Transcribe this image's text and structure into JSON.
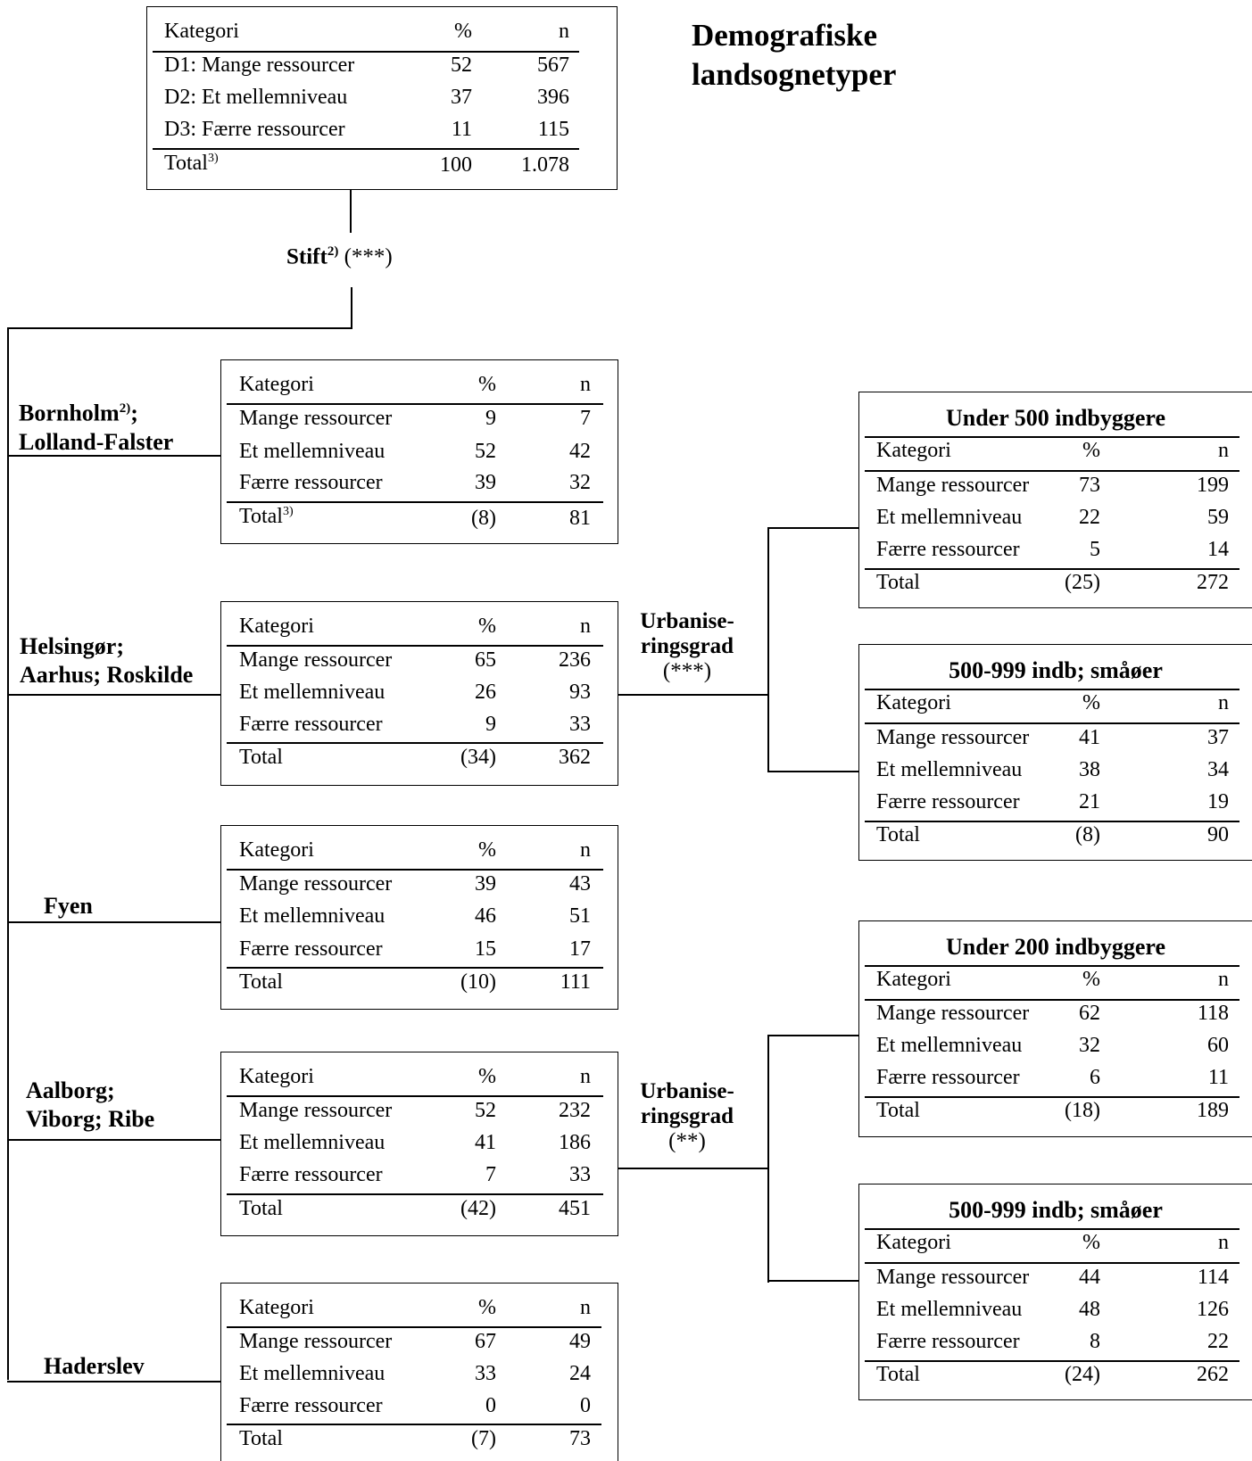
{
  "title": [
    "Demografiske",
    "landsognetyper"
  ],
  "root": {
    "header": [
      "Kategori",
      "%",
      "n"
    ],
    "rows": [
      [
        "D1: Mange ressourcer",
        "52",
        "567"
      ],
      [
        "D2: Et mellemniveau",
        "37",
        "396"
      ],
      [
        "D3: Færre ressourcer",
        "11",
        "115"
      ]
    ],
    "total": [
      "Total",
      "100",
      "1.078"
    ],
    "total_sup": "3)"
  },
  "split1": {
    "label": "Stift",
    "sup": "2)",
    "sig": "(***)"
  },
  "branches": [
    {
      "label": [
        "Bornholm",
        "Lolland-Falster"
      ],
      "label_sup": "2)",
      "label_suffix": ";",
      "table": {
        "header": [
          "Kategori",
          "%",
          "n"
        ],
        "rows": [
          [
            "Mange ressourcer",
            "9",
            "7"
          ],
          [
            "Et mellemniveau",
            "52",
            "42"
          ],
          [
            "Færre ressourcer",
            "39",
            "32"
          ]
        ],
        "total": [
          "Total",
          "(8)",
          "81"
        ],
        "total_sup": "3)"
      }
    },
    {
      "label": [
        "Helsingør;",
        "Aarhus; Roskilde"
      ],
      "table": {
        "header": [
          "Kategori",
          "%",
          "n"
        ],
        "rows": [
          [
            "Mange ressourcer",
            "65",
            "236"
          ],
          [
            "Et mellemniveau",
            "26",
            "93"
          ],
          [
            "Færre ressourcer",
            "9",
            "33"
          ]
        ],
        "total": [
          "Total",
          "(34)",
          "362"
        ]
      }
    },
    {
      "label": [
        "Fyen"
      ],
      "table": {
        "header": [
          "Kategori",
          "%",
          "n"
        ],
        "rows": [
          [
            "Mange ressourcer",
            "39",
            "43"
          ],
          [
            "Et mellemniveau",
            "46",
            "51"
          ],
          [
            "Færre ressourcer",
            "15",
            "17"
          ]
        ],
        "total": [
          "Total",
          "(10)",
          "111"
        ]
      }
    },
    {
      "label": [
        "Aalborg;",
        "Viborg; Ribe"
      ],
      "table": {
        "header": [
          "Kategori",
          "%",
          "n"
        ],
        "rows": [
          [
            "Mange ressourcer",
            "52",
            "232"
          ],
          [
            "Et mellemniveau",
            "41",
            "186"
          ],
          [
            "Færre ressourcer",
            "7",
            "33"
          ]
        ],
        "total": [
          "Total",
          "(42)",
          "451"
        ]
      }
    },
    {
      "label": [
        "Haderslev"
      ],
      "table": {
        "header": [
          "Kategori",
          "%",
          "n"
        ],
        "rows": [
          [
            "Mange ressourcer",
            "67",
            "49"
          ],
          [
            "Et mellemniveau",
            "33",
            "24"
          ],
          [
            "Færre ressourcer",
            "0",
            "0"
          ]
        ],
        "total": [
          "Total",
          "(7)",
          "73"
        ]
      }
    }
  ],
  "urbanisation": [
    {
      "label": [
        "Urbanise-",
        "ringsgrad"
      ],
      "sig": "(***)"
    },
    {
      "label": [
        "Urbanise-",
        "ringsgrad"
      ],
      "sig": "(**)"
    }
  ],
  "subtables": [
    {
      "title": "Under 500 indbyggere",
      "header": [
        "Kategori",
        "%",
        "n"
      ],
      "rows": [
        [
          "Mange ressourcer",
          "73",
          "199"
        ],
        [
          "Et mellemniveau",
          "22",
          "59"
        ],
        [
          "Færre ressourcer",
          "5",
          "14"
        ]
      ],
      "total": [
        "Total",
        "(25)",
        "272"
      ]
    },
    {
      "title": "500-999 indb; småøer",
      "header": [
        "Kategori",
        "%",
        "n"
      ],
      "rows": [
        [
          "Mange ressourcer",
          "41",
          "37"
        ],
        [
          "Et mellemniveau",
          "38",
          "34"
        ],
        [
          "Færre ressourcer",
          "21",
          "19"
        ]
      ],
      "total": [
        "Total",
        "(8)",
        "90"
      ]
    },
    {
      "title": "Under 200 indbyggere",
      "header": [
        "Kategori",
        "%",
        "n"
      ],
      "rows": [
        [
          "Mange ressourcer",
          "62",
          "118"
        ],
        [
          "Et mellemniveau",
          "32",
          "60"
        ],
        [
          "Færre ressourcer",
          "6",
          "11"
        ]
      ],
      "total": [
        "Total",
        "(18)",
        "189"
      ]
    },
    {
      "title": "500-999 indb; småøer",
      "header": [
        "Kategori",
        "%",
        "n"
      ],
      "rows": [
        [
          "Mange ressourcer",
          "44",
          "114"
        ],
        [
          "Et mellemniveau",
          "48",
          "126"
        ],
        [
          "Færre ressourcer",
          "8",
          "22"
        ]
      ],
      "total": [
        "Total",
        "(24)",
        "262"
      ]
    }
  ]
}
